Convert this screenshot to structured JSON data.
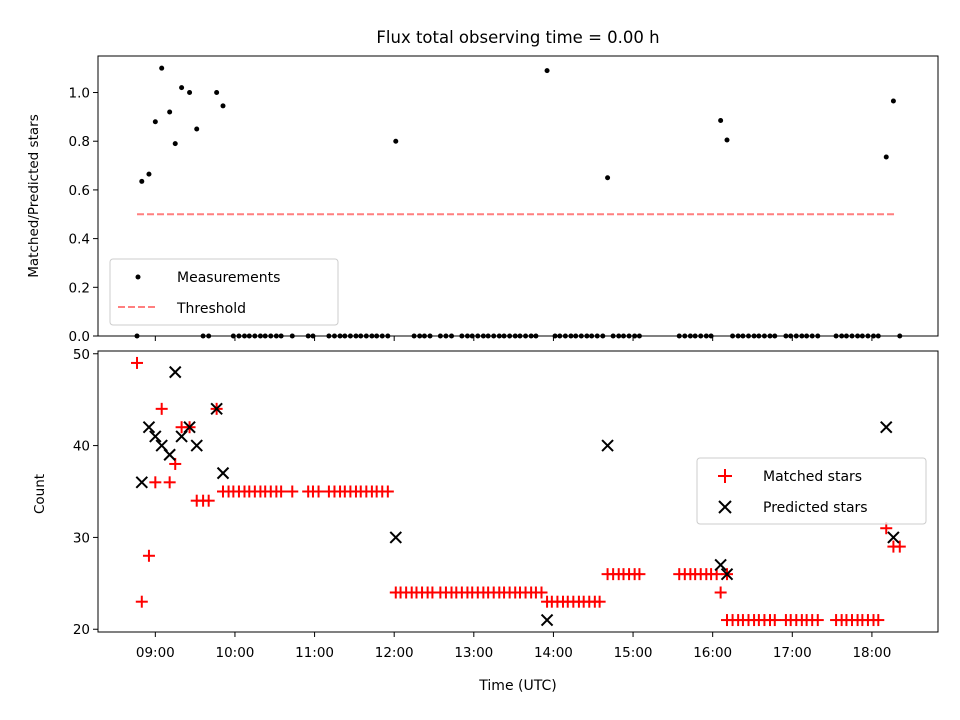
{
  "figure": {
    "title": "Flux total observing time = 0.00 h",
    "xlabel": "Time (UTC)",
    "x_tick_labels": [
      "09:00",
      "10:00",
      "11:00",
      "12:00",
      "13:00",
      "14:00",
      "15:00",
      "16:00",
      "17:00",
      "18:00"
    ]
  },
  "colors": {
    "matched": "#ff0000",
    "predicted": "#000000",
    "measurement": "#000000",
    "threshold": "#ff7f7f"
  },
  "chart_data": [
    {
      "type": "scatter",
      "ylabel": "Matched/Predicted stars",
      "x_unit": "hours (UTC)",
      "xlim": [
        8.28,
        18.83
      ],
      "ylim": [
        0.0,
        1.15
      ],
      "yticks": [
        0.0,
        0.2,
        0.4,
        0.6,
        0.8,
        1.0
      ],
      "ytick_labels": [
        "0.0",
        "0.2",
        "0.4",
        "0.6",
        "0.8",
        "1.0"
      ],
      "legend": {
        "position": "lower-left",
        "entries": [
          "Measurements",
          "Threshold"
        ]
      },
      "threshold": {
        "name": "Threshold",
        "y": 0.5,
        "x_start": 8.77,
        "x_end": 18.28
      },
      "series": [
        {
          "name": "Measurements",
          "points": [
            [
              8.77,
              0.0
            ],
            [
              8.83,
              0.635
            ],
            [
              8.92,
              0.665
            ],
            [
              9.0,
              0.88
            ],
            [
              9.08,
              1.1
            ],
            [
              9.18,
              0.92
            ],
            [
              9.25,
              0.79
            ],
            [
              9.33,
              1.02
            ],
            [
              9.43,
              1.0
            ],
            [
              9.52,
              0.85
            ],
            [
              9.77,
              1.0
            ],
            [
              9.85,
              0.945
            ],
            [
              9.6,
              0.0
            ],
            [
              9.67,
              0.0
            ],
            [
              9.98,
              0.0
            ],
            [
              10.05,
              0.0
            ],
            [
              10.12,
              0.0
            ],
            [
              10.18,
              0.0
            ],
            [
              10.25,
              0.0
            ],
            [
              10.32,
              0.0
            ],
            [
              10.38,
              0.0
            ],
            [
              10.45,
              0.0
            ],
            [
              10.52,
              0.0
            ],
            [
              10.58,
              0.0
            ],
            [
              10.72,
              0.0
            ],
            [
              10.92,
              0.0
            ],
            [
              10.98,
              0.0
            ],
            [
              11.18,
              0.0
            ],
            [
              11.25,
              0.0
            ],
            [
              11.32,
              0.0
            ],
            [
              11.38,
              0.0
            ],
            [
              11.45,
              0.0
            ],
            [
              11.52,
              0.0
            ],
            [
              11.58,
              0.0
            ],
            [
              11.65,
              0.0
            ],
            [
              11.72,
              0.0
            ],
            [
              11.78,
              0.0
            ],
            [
              11.85,
              0.0
            ],
            [
              11.92,
              0.0
            ],
            [
              12.02,
              0.8
            ],
            [
              12.25,
              0.0
            ],
            [
              12.32,
              0.0
            ],
            [
              12.38,
              0.0
            ],
            [
              12.45,
              0.0
            ],
            [
              12.58,
              0.0
            ],
            [
              12.65,
              0.0
            ],
            [
              12.72,
              0.0
            ],
            [
              12.85,
              0.0
            ],
            [
              12.92,
              0.0
            ],
            [
              12.98,
              0.0
            ],
            [
              13.05,
              0.0
            ],
            [
              13.12,
              0.0
            ],
            [
              13.18,
              0.0
            ],
            [
              13.25,
              0.0
            ],
            [
              13.32,
              0.0
            ],
            [
              13.38,
              0.0
            ],
            [
              13.45,
              0.0
            ],
            [
              13.52,
              0.0
            ],
            [
              13.58,
              0.0
            ],
            [
              13.65,
              0.0
            ],
            [
              13.72,
              0.0
            ],
            [
              13.78,
              0.0
            ],
            [
              13.92,
              1.09
            ],
            [
              14.02,
              0.0
            ],
            [
              14.08,
              0.0
            ],
            [
              14.15,
              0.0
            ],
            [
              14.22,
              0.0
            ],
            [
              14.28,
              0.0
            ],
            [
              14.35,
              0.0
            ],
            [
              14.42,
              0.0
            ],
            [
              14.48,
              0.0
            ],
            [
              14.55,
              0.0
            ],
            [
              14.62,
              0.0
            ],
            [
              14.68,
              0.65
            ],
            [
              14.75,
              0.0
            ],
            [
              14.82,
              0.0
            ],
            [
              14.88,
              0.0
            ],
            [
              14.95,
              0.0
            ],
            [
              15.02,
              0.0
            ],
            [
              15.08,
              0.0
            ],
            [
              15.58,
              0.0
            ],
            [
              15.65,
              0.0
            ],
            [
              15.72,
              0.0
            ],
            [
              15.78,
              0.0
            ],
            [
              15.85,
              0.0
            ],
            [
              15.92,
              0.0
            ],
            [
              15.98,
              0.0
            ],
            [
              16.1,
              0.885
            ],
            [
              16.18,
              0.805
            ],
            [
              16.25,
              0.0
            ],
            [
              16.32,
              0.0
            ],
            [
              16.38,
              0.0
            ],
            [
              16.45,
              0.0
            ],
            [
              16.52,
              0.0
            ],
            [
              16.58,
              0.0
            ],
            [
              16.65,
              0.0
            ],
            [
              16.72,
              0.0
            ],
            [
              16.78,
              0.0
            ],
            [
              16.92,
              0.0
            ],
            [
              16.98,
              0.0
            ],
            [
              17.05,
              0.0
            ],
            [
              17.12,
              0.0
            ],
            [
              17.18,
              0.0
            ],
            [
              17.25,
              0.0
            ],
            [
              17.32,
              0.0
            ],
            [
              17.55,
              0.0
            ],
            [
              17.62,
              0.0
            ],
            [
              17.68,
              0.0
            ],
            [
              17.75,
              0.0
            ],
            [
              17.82,
              0.0
            ],
            [
              17.88,
              0.0
            ],
            [
              17.95,
              0.0
            ],
            [
              18.02,
              0.0
            ],
            [
              18.08,
              0.0
            ],
            [
              18.18,
              0.735
            ],
            [
              18.27,
              0.965
            ],
            [
              18.35,
              0.0
            ]
          ]
        }
      ]
    },
    {
      "type": "scatter",
      "ylabel": "Count",
      "x_unit": "hours (UTC)",
      "xlim": [
        8.28,
        18.83
      ],
      "ylim": [
        19.7,
        50.3
      ],
      "yticks": [
        20,
        30,
        40,
        50
      ],
      "ytick_labels": [
        "20",
        "30",
        "40",
        "50"
      ],
      "legend": {
        "position": "center-right",
        "entries": [
          "Matched stars",
          "Predicted stars"
        ]
      },
      "series": [
        {
          "name": "Matched stars",
          "points": [
            [
              8.77,
              49
            ],
            [
              8.83,
              23
            ],
            [
              8.92,
              28
            ],
            [
              9.0,
              36
            ],
            [
              9.08,
              44
            ],
            [
              9.18,
              36
            ],
            [
              9.25,
              38
            ],
            [
              9.33,
              42
            ],
            [
              9.43,
              42
            ],
            [
              9.52,
              34
            ],
            [
              9.6,
              34
            ],
            [
              9.67,
              34
            ],
            [
              9.77,
              44
            ],
            [
              9.85,
              35
            ],
            [
              9.92,
              35
            ],
            [
              9.98,
              35
            ],
            [
              10.05,
              35
            ],
            [
              10.12,
              35
            ],
            [
              10.18,
              35
            ],
            [
              10.25,
              35
            ],
            [
              10.32,
              35
            ],
            [
              10.38,
              35
            ],
            [
              10.45,
              35
            ],
            [
              10.52,
              35
            ],
            [
              10.58,
              35
            ],
            [
              10.72,
              35
            ],
            [
              10.92,
              35
            ],
            [
              10.98,
              35
            ],
            [
              11.05,
              35
            ],
            [
              11.18,
              35
            ],
            [
              11.25,
              35
            ],
            [
              11.32,
              35
            ],
            [
              11.38,
              35
            ],
            [
              11.45,
              35
            ],
            [
              11.52,
              35
            ],
            [
              11.58,
              35
            ],
            [
              11.65,
              35
            ],
            [
              11.72,
              35
            ],
            [
              11.78,
              35
            ],
            [
              11.85,
              35
            ],
            [
              11.92,
              35
            ],
            [
              12.02,
              24
            ],
            [
              12.08,
              24
            ],
            [
              12.15,
              24
            ],
            [
              12.22,
              24
            ],
            [
              12.28,
              24
            ],
            [
              12.35,
              24
            ],
            [
              12.42,
              24
            ],
            [
              12.48,
              24
            ],
            [
              12.58,
              24
            ],
            [
              12.65,
              24
            ],
            [
              12.72,
              24
            ],
            [
              12.78,
              24
            ],
            [
              12.85,
              24
            ],
            [
              12.92,
              24
            ],
            [
              12.98,
              24
            ],
            [
              13.05,
              24
            ],
            [
              13.12,
              24
            ],
            [
              13.18,
              24
            ],
            [
              13.25,
              24
            ],
            [
              13.32,
              24
            ],
            [
              13.38,
              24
            ],
            [
              13.45,
              24
            ],
            [
              13.52,
              24
            ],
            [
              13.58,
              24
            ],
            [
              13.65,
              24
            ],
            [
              13.72,
              24
            ],
            [
              13.78,
              24
            ],
            [
              13.85,
              24
            ],
            [
              13.92,
              23
            ],
            [
              13.98,
              23
            ],
            [
              14.05,
              23
            ],
            [
              14.12,
              23
            ],
            [
              14.18,
              23
            ],
            [
              14.25,
              23
            ],
            [
              14.32,
              23
            ],
            [
              14.38,
              23
            ],
            [
              14.45,
              23
            ],
            [
              14.52,
              23
            ],
            [
              14.58,
              23
            ],
            [
              14.68,
              26
            ],
            [
              14.75,
              26
            ],
            [
              14.82,
              26
            ],
            [
              14.88,
              26
            ],
            [
              14.95,
              26
            ],
            [
              15.02,
              26
            ],
            [
              15.08,
              26
            ],
            [
              15.58,
              26
            ],
            [
              15.65,
              26
            ],
            [
              15.72,
              26
            ],
            [
              15.78,
              26
            ],
            [
              15.85,
              26
            ],
            [
              15.92,
              26
            ],
            [
              15.98,
              26
            ],
            [
              16.05,
              26
            ],
            [
              16.1,
              24
            ],
            [
              16.18,
              26
            ],
            [
              16.18,
              21
            ],
            [
              16.25,
              21
            ],
            [
              16.32,
              21
            ],
            [
              16.38,
              21
            ],
            [
              16.45,
              21
            ],
            [
              16.52,
              21
            ],
            [
              16.58,
              21
            ],
            [
              16.65,
              21
            ],
            [
              16.72,
              21
            ],
            [
              16.78,
              21
            ],
            [
              16.92,
              21
            ],
            [
              16.98,
              21
            ],
            [
              17.05,
              21
            ],
            [
              17.12,
              21
            ],
            [
              17.18,
              21
            ],
            [
              17.25,
              21
            ],
            [
              17.32,
              21
            ],
            [
              17.55,
              21
            ],
            [
              17.62,
              21
            ],
            [
              17.68,
              21
            ],
            [
              17.75,
              21
            ],
            [
              17.82,
              21
            ],
            [
              17.88,
              21
            ],
            [
              17.95,
              21
            ],
            [
              18.02,
              21
            ],
            [
              18.08,
              21
            ],
            [
              18.18,
              31
            ],
            [
              18.27,
              29
            ],
            [
              18.35,
              29
            ]
          ]
        },
        {
          "name": "Predicted stars",
          "points": [
            [
              8.83,
              36
            ],
            [
              8.92,
              42
            ],
            [
              9.0,
              41
            ],
            [
              9.08,
              40
            ],
            [
              9.18,
              39
            ],
            [
              9.25,
              48
            ],
            [
              9.33,
              41
            ],
            [
              9.43,
              42
            ],
            [
              9.52,
              40
            ],
            [
              9.77,
              44
            ],
            [
              9.85,
              37
            ],
            [
              12.02,
              30
            ],
            [
              13.92,
              21
            ],
            [
              14.68,
              40
            ],
            [
              16.1,
              27
            ],
            [
              16.18,
              26
            ],
            [
              18.18,
              42
            ],
            [
              18.27,
              30
            ]
          ]
        }
      ]
    }
  ]
}
